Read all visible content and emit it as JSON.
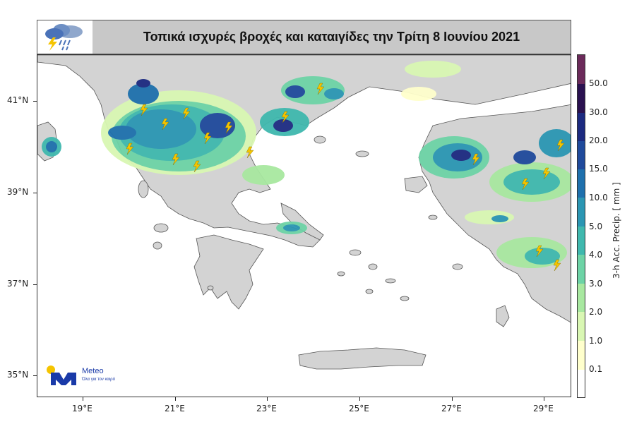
{
  "title": "Τοπικά ισχυρές βροχές και καταιγίδες την Τρίτη 8 Ιουνίου 2021",
  "map": {
    "lat_ticks": [
      {
        "value": 41,
        "label": "41°N"
      },
      {
        "value": 39,
        "label": "39°N"
      },
      {
        "value": 37,
        "label": "37°N"
      },
      {
        "value": 35,
        "label": "35°N"
      }
    ],
    "lon_ticks": [
      {
        "value": 19,
        "label": "19°E"
      },
      {
        "value": 21,
        "label": "21°E"
      },
      {
        "value": 23,
        "label": "23°E"
      },
      {
        "value": 25,
        "label": "25°E"
      },
      {
        "value": 27,
        "label": "27°E"
      },
      {
        "value": 29,
        "label": "29°E"
      }
    ],
    "lon_range": [
      18,
      29.6
    ],
    "lat_range": [
      34.5,
      42
    ],
    "land_color": "#d3d3d3",
    "sea_color": "#ffffff"
  },
  "colorbar": {
    "title": "3-h Acc. Precip. [ mm ]",
    "labels": [
      "0.1",
      "1.0",
      "2.0",
      "3.0",
      "4.0",
      "5.0",
      "10.0",
      "15.0",
      "20.0",
      "30.0",
      "50.0"
    ],
    "colors": [
      "#ffffff",
      "#ffffcc",
      "#d9f7b3",
      "#a8e8a0",
      "#6dd3a6",
      "#3fb8ae",
      "#2b96b3",
      "#1e70ad",
      "#1f4a9c",
      "#1c2a80",
      "#2a1150",
      "#6b2a5a"
    ]
  },
  "brand": {
    "name": "Meteo",
    "tagline": "Όλα για τον καιρό",
    "accent": "#1a3aa8",
    "sun_color": "#f5c400"
  }
}
